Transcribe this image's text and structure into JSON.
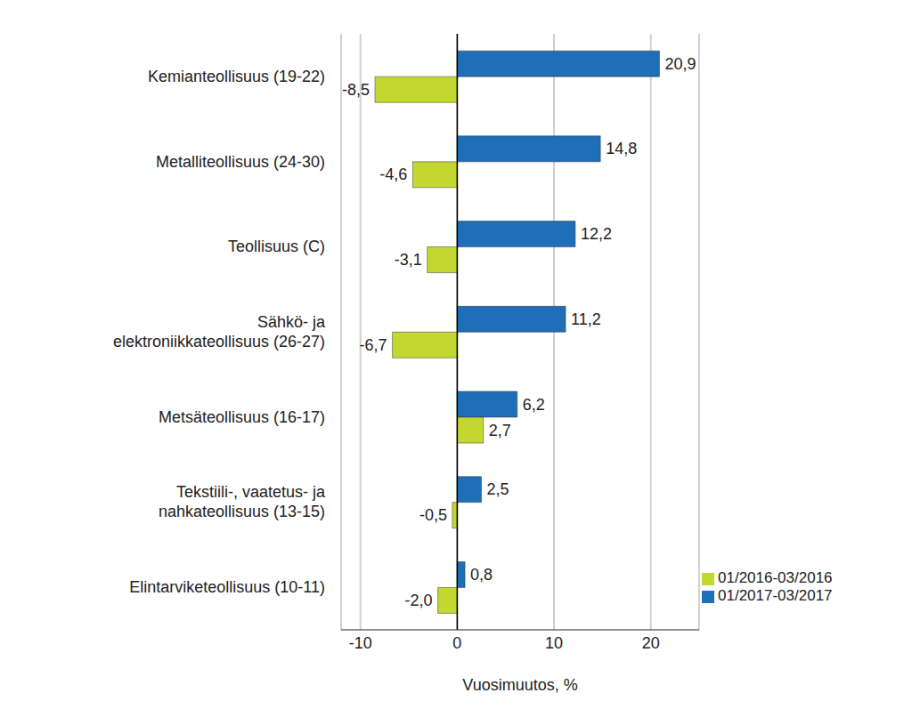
{
  "chart_data": {
    "type": "bar",
    "orientation": "horizontal",
    "categories": [
      "Kemianteollisuus (19-22)",
      "Metalliteollisuus (24-30)",
      "Teollisuus (C)",
      "Sähkö- ja\nelektroniikkateollisuus (26-27)",
      "Metsäteollisuus (16-17)",
      "Tekstiili-, vaatetus- ja\nnahkateollisuus (13-15)",
      "Elintarviketeollisuus (10-11)"
    ],
    "series": [
      {
        "name": "01/2017-03/2017",
        "color": "#1f6fb8",
        "values": [
          20.9,
          14.8,
          12.2,
          11.2,
          6.2,
          2.5,
          0.8
        ],
        "value_labels": [
          "20,9",
          "14,8",
          "12,2",
          "11,2",
          "6,2",
          "2,5",
          "0,8"
        ]
      },
      {
        "name": "01/2016-03/2016",
        "color": "#c3d82e",
        "values": [
          -8.5,
          -4.6,
          -3.1,
          -6.7,
          2.7,
          -0.5,
          -2.0
        ],
        "value_labels": [
          "-8,5",
          "-4,6",
          "-3,1",
          "-6,7",
          "2,7",
          "-0,5",
          "-2,0"
        ]
      }
    ],
    "x_label": "Vuosimuutos, %",
    "xlim": [
      -12,
      25
    ],
    "xticks": [
      -10,
      0,
      10,
      20
    ],
    "grid": true,
    "legend": "lower right",
    "data_labels": true
  }
}
